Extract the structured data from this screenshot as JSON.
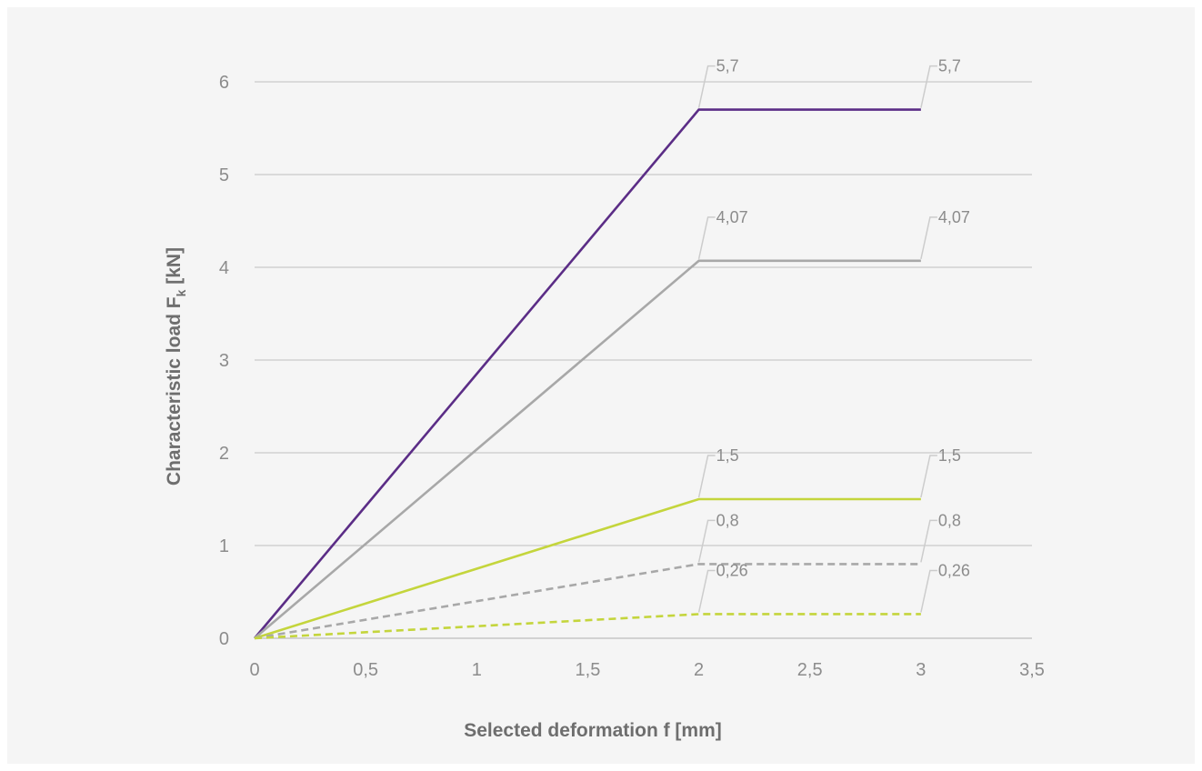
{
  "chart_data": {
    "type": "line",
    "title": "",
    "xlabel": "Selected deformation f [mm]",
    "ylabel": {
      "main": "Characteristic load  F",
      "sub": "k",
      "unit": " [kN]"
    },
    "xlim": [
      0,
      3.5
    ],
    "ylim": [
      0,
      6
    ],
    "x_ticks": [
      {
        "value": 0,
        "label": "0"
      },
      {
        "value": 0.5,
        "label": "0,5"
      },
      {
        "value": 1,
        "label": "1"
      },
      {
        "value": 1.5,
        "label": "1,5"
      },
      {
        "value": 2,
        "label": "2"
      },
      {
        "value": 2.5,
        "label": "2,5"
      },
      {
        "value": 3,
        "label": "3"
      },
      {
        "value": 3.5,
        "label": "3,5"
      }
    ],
    "y_ticks": [
      {
        "value": 0,
        "label": "0"
      },
      {
        "value": 1,
        "label": "1"
      },
      {
        "value": 2,
        "label": "2"
      },
      {
        "value": 3,
        "label": "3"
      },
      {
        "value": 4,
        "label": "4"
      },
      {
        "value": 5,
        "label": "5"
      },
      {
        "value": 6,
        "label": "6"
      }
    ],
    "grid": {
      "horizontal": true,
      "vertical": false
    },
    "legend": "none",
    "series": [
      {
        "id": "purple",
        "color": "#5b2d86",
        "dash": "solid",
        "points": [
          {
            "x": 0,
            "y": 0
          },
          {
            "x": 2,
            "y": 5.7
          },
          {
            "x": 3,
            "y": 5.7
          }
        ],
        "labels": [
          {
            "x": 2,
            "y": 5.7,
            "text": "5,7"
          },
          {
            "x": 3,
            "y": 5.7,
            "text": "5,7"
          }
        ]
      },
      {
        "id": "gray",
        "color": "#a8a8a8",
        "dash": "solid",
        "points": [
          {
            "x": 0,
            "y": 0
          },
          {
            "x": 2,
            "y": 4.07
          },
          {
            "x": 3,
            "y": 4.07
          }
        ],
        "labels": [
          {
            "x": 2,
            "y": 4.07,
            "text": "4,07"
          },
          {
            "x": 3,
            "y": 4.07,
            "text": "4,07"
          }
        ]
      },
      {
        "id": "green",
        "color": "#c4d53c",
        "dash": "solid",
        "points": [
          {
            "x": 0,
            "y": 0
          },
          {
            "x": 2,
            "y": 1.5
          },
          {
            "x": 3,
            "y": 1.5
          }
        ],
        "labels": [
          {
            "x": 2,
            "y": 1.5,
            "text": "1,5"
          },
          {
            "x": 3,
            "y": 1.5,
            "text": "1,5"
          }
        ]
      },
      {
        "id": "gray-dashed",
        "color": "#a8a8a8",
        "dash": "dashed",
        "points": [
          {
            "x": 0,
            "y": 0
          },
          {
            "x": 2,
            "y": 0.8
          },
          {
            "x": 3,
            "y": 0.8
          }
        ],
        "labels": [
          {
            "x": 2,
            "y": 0.8,
            "text": "0,8"
          },
          {
            "x": 3,
            "y": 0.8,
            "text": "0,8"
          }
        ]
      },
      {
        "id": "green-dashed",
        "color": "#c4d53c",
        "dash": "dashed",
        "points": [
          {
            "x": 0,
            "y": 0
          },
          {
            "x": 2,
            "y": 0.26
          },
          {
            "x": 3,
            "y": 0.26
          }
        ],
        "labels": [
          {
            "x": 2,
            "y": 0.26,
            "text": "0,26"
          },
          {
            "x": 3,
            "y": 0.26,
            "text": "0,26"
          }
        ]
      }
    ],
    "colors": {
      "background": "#f5f5f5",
      "grid": "#bfbfbf",
      "axis": "#bdbdbd",
      "tick_text": "#8c8c8c",
      "axis_title": "#6e6e6e",
      "leader": "#cccccc"
    }
  }
}
